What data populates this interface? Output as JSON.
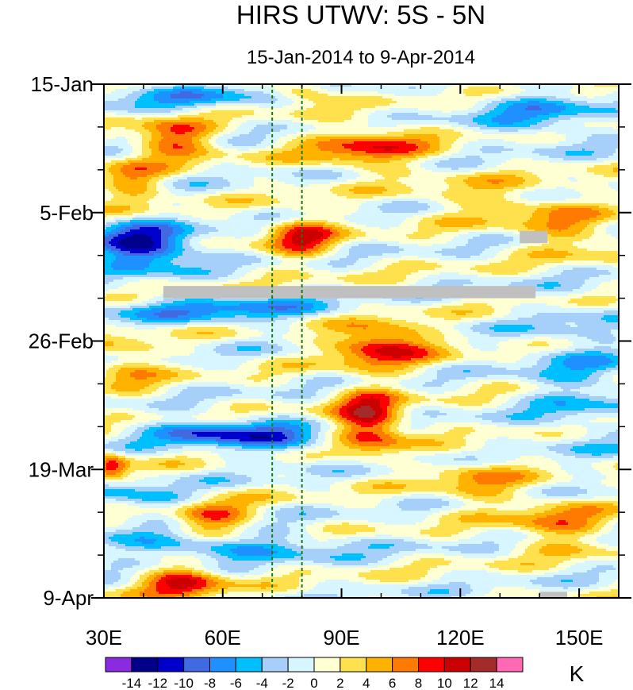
{
  "chart_data": {
    "type": "heatmap",
    "title": "HIRS UTWV: 5S - 5N",
    "subtitle": "15-Jan-2014 to 9-Apr-2014",
    "x_axis": {
      "range": [
        30,
        160
      ],
      "ticks": [
        30,
        60,
        90,
        120,
        150
      ],
      "tick_labels": [
        "30E",
        "60E",
        "90E",
        "120E",
        "150E"
      ],
      "minor_step": 10
    },
    "y_axis": {
      "range_days_since_start": [
        0,
        84
      ],
      "ticks": [
        0,
        21,
        42,
        63,
        84
      ],
      "tick_labels": [
        "15-Jan",
        "5-Feb",
        "26-Feb",
        "19-Mar",
        "9-Apr"
      ],
      "minor_step_days": 7,
      "direction": "down"
    },
    "reference_lines_lon": [
      72.5,
      80
    ],
    "missing_data_bars": [
      {
        "lon": [
          45,
          139
        ],
        "day": [
          33,
          35
        ]
      },
      {
        "lon": [
          135,
          142
        ],
        "day": [
          24,
          26
        ]
      },
      {
        "lon": [
          140,
          147
        ],
        "day": [
          83,
          84
        ]
      }
    ],
    "colorbar": {
      "unit": "K",
      "levels": [
        -14,
        -12,
        -10,
        -8,
        -6,
        -4,
        -2,
        0,
        2,
        4,
        6,
        8,
        10,
        12,
        14
      ],
      "level_labels": [
        "-14",
        "-12",
        "-10",
        "-8",
        "-6",
        "-4",
        "-2",
        "0",
        "2",
        "4",
        "6",
        "8",
        "10",
        "12",
        "14"
      ],
      "colors": [
        "#8a2be2",
        "#00008b",
        "#0000cd",
        "#4169e1",
        "#1e90ff",
        "#00bfff",
        "#a6d0fa",
        "#d8f6ff",
        "#ffffd4",
        "#ffe14d",
        "#ffb300",
        "#ff7a00",
        "#ff0000",
        "#cc0000",
        "#a52a2a",
        "#ff69b4"
      ]
    },
    "anomaly_features": [
      {
        "lon": 48,
        "day": 9,
        "value": 9,
        "sigma_lon": 7,
        "sigma_day": 2.2
      },
      {
        "lon": 37,
        "day": 16,
        "value": 6,
        "sigma_lon": 6,
        "sigma_day": 2.5
      },
      {
        "lon": 97,
        "day": 10.5,
        "value": 8,
        "sigma_lon": 11,
        "sigma_day": 2.5
      },
      {
        "lon": 80,
        "day": 1,
        "value": 6,
        "sigma_lon": 5,
        "sigma_day": 1.5
      },
      {
        "lon": 80,
        "day": 25,
        "value": 9,
        "sigma_lon": 6,
        "sigma_day": 2.5
      },
      {
        "lon": 40,
        "day": 26.5,
        "value": -13,
        "sigma_lon": 9,
        "sigma_day": 2.5
      },
      {
        "lon": 100,
        "day": 42.5,
        "value": 11,
        "sigma_lon": 9,
        "sigma_day": 2.5
      },
      {
        "lon": 97,
        "day": 55,
        "value": 12,
        "sigma_lon": 6,
        "sigma_day": 3.5
      },
      {
        "lon": 55,
        "day": 57,
        "value": -9,
        "sigma_lon": 10,
        "sigma_day": 1.5
      },
      {
        "lon": 75,
        "day": 58,
        "value": -7,
        "sigma_lon": 8,
        "sigma_day": 2
      },
      {
        "lon": 32,
        "day": 62.5,
        "value": 9,
        "sigma_lon": 3,
        "sigma_day": 1.5
      },
      {
        "lon": 57,
        "day": 71,
        "value": 9,
        "sigma_lon": 7,
        "sigma_day": 2
      },
      {
        "lon": 50,
        "day": 81.5,
        "value": 10,
        "sigma_lon": 7,
        "sigma_day": 2
      },
      {
        "lon": 145,
        "day": 72,
        "value": 6,
        "sigma_lon": 9,
        "sigma_day": 3
      },
      {
        "lon": 148,
        "day": 24,
        "value": 5,
        "sigma_lon": 9,
        "sigma_day": 3
      },
      {
        "lon": 128,
        "day": 19,
        "value": 4,
        "sigma_lon": 12,
        "sigma_day": 2.5
      },
      {
        "lon": 140,
        "day": 5,
        "value": -5,
        "sigma_lon": 12,
        "sigma_day": 3
      },
      {
        "lon": 150,
        "day": 48,
        "value": -4,
        "sigma_lon": 10,
        "sigma_day": 8
      },
      {
        "lon": 58,
        "day": 75.5,
        "value": -7,
        "sigma_lon": 22,
        "sigma_day": 1.5
      },
      {
        "lon": 42,
        "day": 68,
        "value": -6,
        "sigma_lon": 8,
        "sigma_day": 1.5
      },
      {
        "lon": 60,
        "day": 37,
        "value": -6,
        "sigma_lon": 22,
        "sigma_day": 1.5
      },
      {
        "lon": 36,
        "day": 46,
        "value": 5,
        "sigma_lon": 6,
        "sigma_day": 3
      },
      {
        "lon": 125,
        "day": 65,
        "value": 5,
        "sigma_lon": 8,
        "sigma_day": 3
      },
      {
        "lon": 50,
        "day": 2,
        "value": -5,
        "sigma_lon": 15,
        "sigma_day": 1.5
      }
    ]
  }
}
